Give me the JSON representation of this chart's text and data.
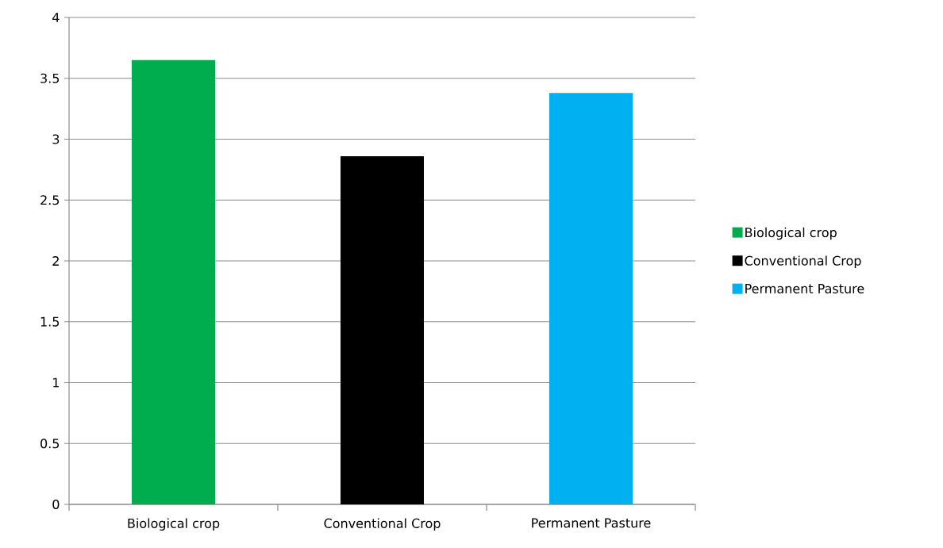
{
  "chart_data": {
    "type": "bar",
    "categories": [
      "Biological crop",
      "Conventional Crop",
      "Permanent Pasture"
    ],
    "series": [
      {
        "name": "Biological crop",
        "color": "#00ad4e",
        "values": [
          3.65,
          null,
          null
        ]
      },
      {
        "name": "Conventional Crop",
        "color": "#000000",
        "values": [
          null,
          2.86,
          null
        ]
      },
      {
        "name": "Permanent Pasture",
        "color": "#00b0f0",
        "values": [
          null,
          null,
          3.38
        ]
      }
    ],
    "ylim": [
      0,
      4
    ],
    "yticks": [
      0,
      0.5,
      1,
      1.5,
      2,
      2.5,
      3,
      3.5,
      4
    ],
    "grid": "y",
    "legend": "right"
  }
}
